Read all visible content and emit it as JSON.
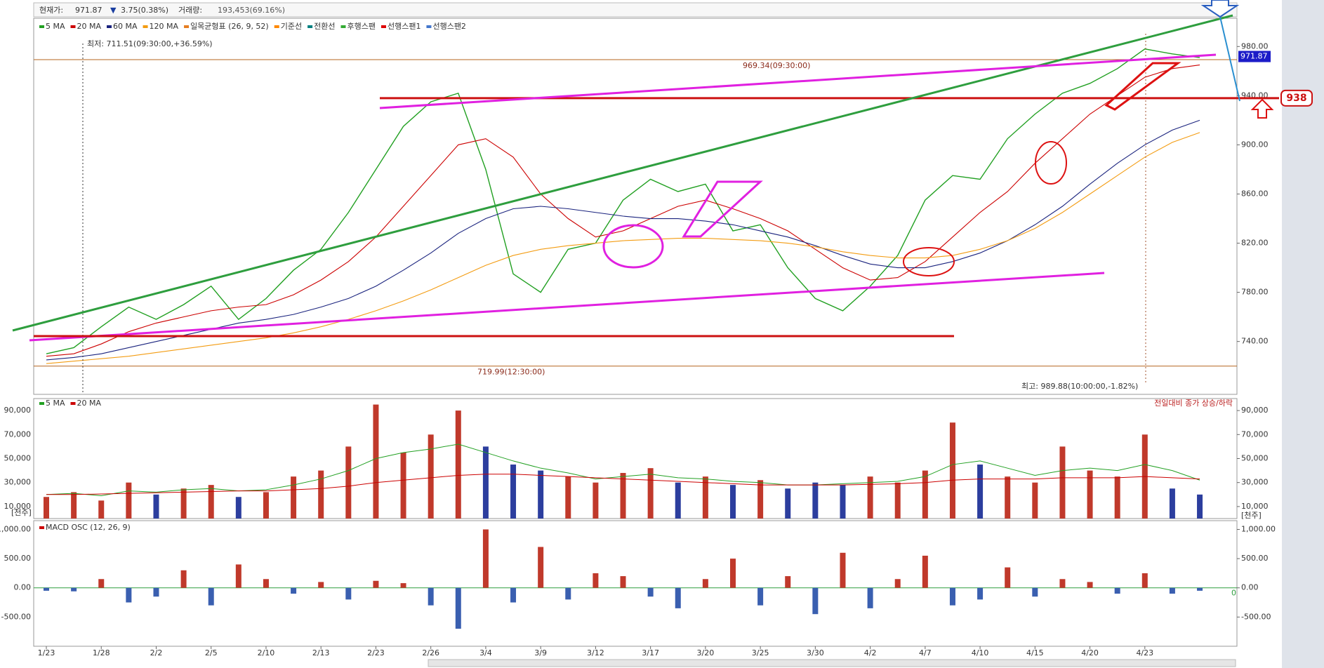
{
  "header": {
    "price_label": "현재가:",
    "price": "971.87",
    "direction": "▼",
    "change": "3.75(0.38%)",
    "volume_label": "거래량:",
    "volume": "193,453(69.16%)"
  },
  "chart_data": [
    {
      "type": "line",
      "categories": [
        "1/23",
        null,
        "1/28",
        null,
        "2/2",
        null,
        "2/5",
        null,
        "2/10",
        null,
        "2/13",
        null,
        "2/23",
        null,
        "2/26",
        null,
        "3/4",
        null,
        "3/9",
        null,
        "3/12",
        null,
        "3/17",
        null,
        "3/20",
        null,
        "3/25",
        null,
        "3/30",
        null,
        "4/2",
        null,
        "4/7",
        null,
        "4/10",
        null,
        "4/15",
        null,
        "4/20",
        null,
        "4/23",
        null,
        null
      ],
      "series": [
        {
          "name": "5 MA",
          "color": "#22a022",
          "values": [
            730,
            735,
            752,
            768,
            758,
            770,
            785,
            758,
            775,
            798,
            815,
            845,
            880,
            915,
            935,
            942,
            880,
            795,
            780,
            815,
            820,
            855,
            872,
            862,
            868,
            830,
            835,
            800,
            775,
            765,
            785,
            810,
            855,
            875,
            872,
            905,
            925,
            942,
            950,
            962,
            978,
            974,
            971
          ]
        },
        {
          "name": "20 MA",
          "color": "#cc0000",
          "values": [
            728,
            730,
            738,
            748,
            755,
            760,
            765,
            768,
            770,
            778,
            790,
            805,
            825,
            850,
            875,
            900,
            905,
            890,
            860,
            840,
            825,
            830,
            840,
            850,
            855,
            848,
            840,
            830,
            815,
            800,
            790,
            792,
            805,
            825,
            845,
            862,
            885,
            905,
            925,
            940,
            955,
            962,
            965
          ]
        },
        {
          "name": "60 MA",
          "color": "#1a237e",
          "values": [
            725,
            727,
            730,
            735,
            740,
            745,
            750,
            755,
            758,
            762,
            768,
            775,
            785,
            798,
            812,
            828,
            840,
            848,
            850,
            848,
            845,
            842,
            840,
            840,
            838,
            835,
            830,
            825,
            818,
            810,
            803,
            800,
            800,
            805,
            812,
            822,
            835,
            850,
            868,
            885,
            900,
            912,
            920
          ]
        },
        {
          "name": "120 MA",
          "color": "#f39c12",
          "values": [
            722,
            724,
            726,
            728,
            731,
            734,
            737,
            740,
            743,
            747,
            752,
            758,
            765,
            773,
            782,
            792,
            802,
            810,
            815,
            818,
            820,
            822,
            823,
            824,
            824,
            823,
            822,
            820,
            817,
            813,
            810,
            808,
            808,
            810,
            815,
            822,
            832,
            845,
            860,
            875,
            890,
            902,
            910
          ]
        }
      ],
      "legend_extra": [
        {
          "name": "일목균형표 (26, 9, 52)",
          "color": "#e67e22"
        },
        {
          "name": "기준선",
          "color": "#ff8800"
        },
        {
          "name": "전환선",
          "color": "#008080"
        },
        {
          "name": "후행스팬",
          "color": "#33aa33"
        },
        {
          "name": "선행스팬1",
          "color": "#dd0000"
        },
        {
          "name": "선행스팬2",
          "color": "#4477cc"
        }
      ],
      "ylim": [
        697,
        1003
      ],
      "yticks": [
        {
          "value": 740,
          "label": "740.00"
        },
        {
          "value": 780,
          "label": "780.00"
        },
        {
          "value": 820,
          "label": "820.00"
        },
        {
          "value": 860,
          "label": "860.00"
        },
        {
          "value": 900,
          "label": "900.00"
        },
        {
          "value": 940,
          "label": "940.00"
        },
        {
          "value": 980,
          "label": "980.00"
        }
      ],
      "reference_lines": [
        {
          "value": 969.34,
          "label": "969.34(09:30:00)"
        },
        {
          "value": 719.99,
          "label": "719.99(12:30:00)"
        }
      ],
      "annotations": [
        "최저: 711.51(09:30:00,+36.59%)",
        "최고: 989.88(10:00:00,-1.82%)"
      ],
      "current": 971.87,
      "marker": 938
    },
    {
      "type": "bar",
      "up_color": "#c0392b",
      "down_color": "#2c3e9e",
      "note": "전일대비 종가 상승/하락",
      "unit": "[천주]",
      "values": [
        18000,
        22000,
        15000,
        30000,
        20000,
        25000,
        28000,
        18000,
        22000,
        35000,
        40000,
        60000,
        95000,
        55000,
        70000,
        90000,
        60000,
        45000,
        40000,
        35000,
        30000,
        38000,
        42000,
        30000,
        35000,
        28000,
        32000,
        25000,
        30000,
        28000,
        35000,
        30000,
        40000,
        80000,
        45000,
        35000,
        30000,
        60000,
        40000,
        35000,
        70000,
        25000,
        20000
      ],
      "series": [
        {
          "name": "5 MA",
          "color": "#22a022",
          "values": [
            20000,
            21000,
            19000,
            23000,
            22000,
            24000,
            25000,
            23000,
            24000,
            28000,
            33000,
            40000,
            50000,
            55000,
            58000,
            62000,
            55000,
            48000,
            42000,
            38000,
            33000,
            35000,
            37000,
            34000,
            33000,
            31000,
            30000,
            28000,
            28000,
            29000,
            30000,
            31000,
            35000,
            45000,
            48000,
            42000,
            36000,
            40000,
            42000,
            40000,
            45000,
            40000,
            32000
          ]
        },
        {
          "name": "20 MA",
          "color": "#cc0000",
          "values": [
            20000,
            20000,
            20500,
            21000,
            21500,
            22000,
            22500,
            23000,
            23000,
            24000,
            25000,
            27000,
            30000,
            32000,
            34000,
            36000,
            37000,
            37000,
            36000,
            35000,
            34000,
            33000,
            32000,
            31000,
            30000,
            29000,
            28000,
            28000,
            28000,
            28000,
            28500,
            29000,
            30000,
            32000,
            33000,
            33000,
            33000,
            34000,
            34000,
            34000,
            35000,
            34000,
            33000
          ]
        }
      ],
      "ylim": [
        0,
        100000
      ],
      "yticks": [
        {
          "value": 10000,
          "label": "10,000"
        },
        {
          "value": 30000,
          "label": "30,000"
        },
        {
          "value": 50000,
          "label": "50,000"
        },
        {
          "value": 70000,
          "label": "70,000"
        },
        {
          "value": 90000,
          "label": "90,000"
        }
      ]
    },
    {
      "type": "bar",
      "up_color": "#c0392b",
      "down_color": "#3a5fb0",
      "baseline": 0,
      "series": [
        {
          "name": "MACD OSC (12, 26, 9)",
          "color": "#cc0000",
          "values": [
            -50,
            -60,
            150,
            -250,
            -150,
            300,
            -300,
            400,
            150,
            -100,
            100,
            -200,
            120,
            80,
            -300,
            -700,
            1000,
            -250,
            700,
            -200,
            250,
            200,
            -150,
            -350,
            150,
            500,
            -300,
            200,
            -450,
            600,
            -350,
            150,
            550,
            -300,
            -200,
            350,
            -150,
            150,
            100,
            -100,
            250,
            -100,
            -50
          ]
        }
      ],
      "ylim": [
        -1000,
        1150
      ],
      "yticks": [
        {
          "value": -500,
          "label": "-500.00"
        },
        {
          "value": 0,
          "label": "0.00"
        },
        {
          "value": 500,
          "label": "500.00"
        },
        {
          "value": 1000,
          "label": "1,000.00"
        }
      ]
    }
  ]
}
